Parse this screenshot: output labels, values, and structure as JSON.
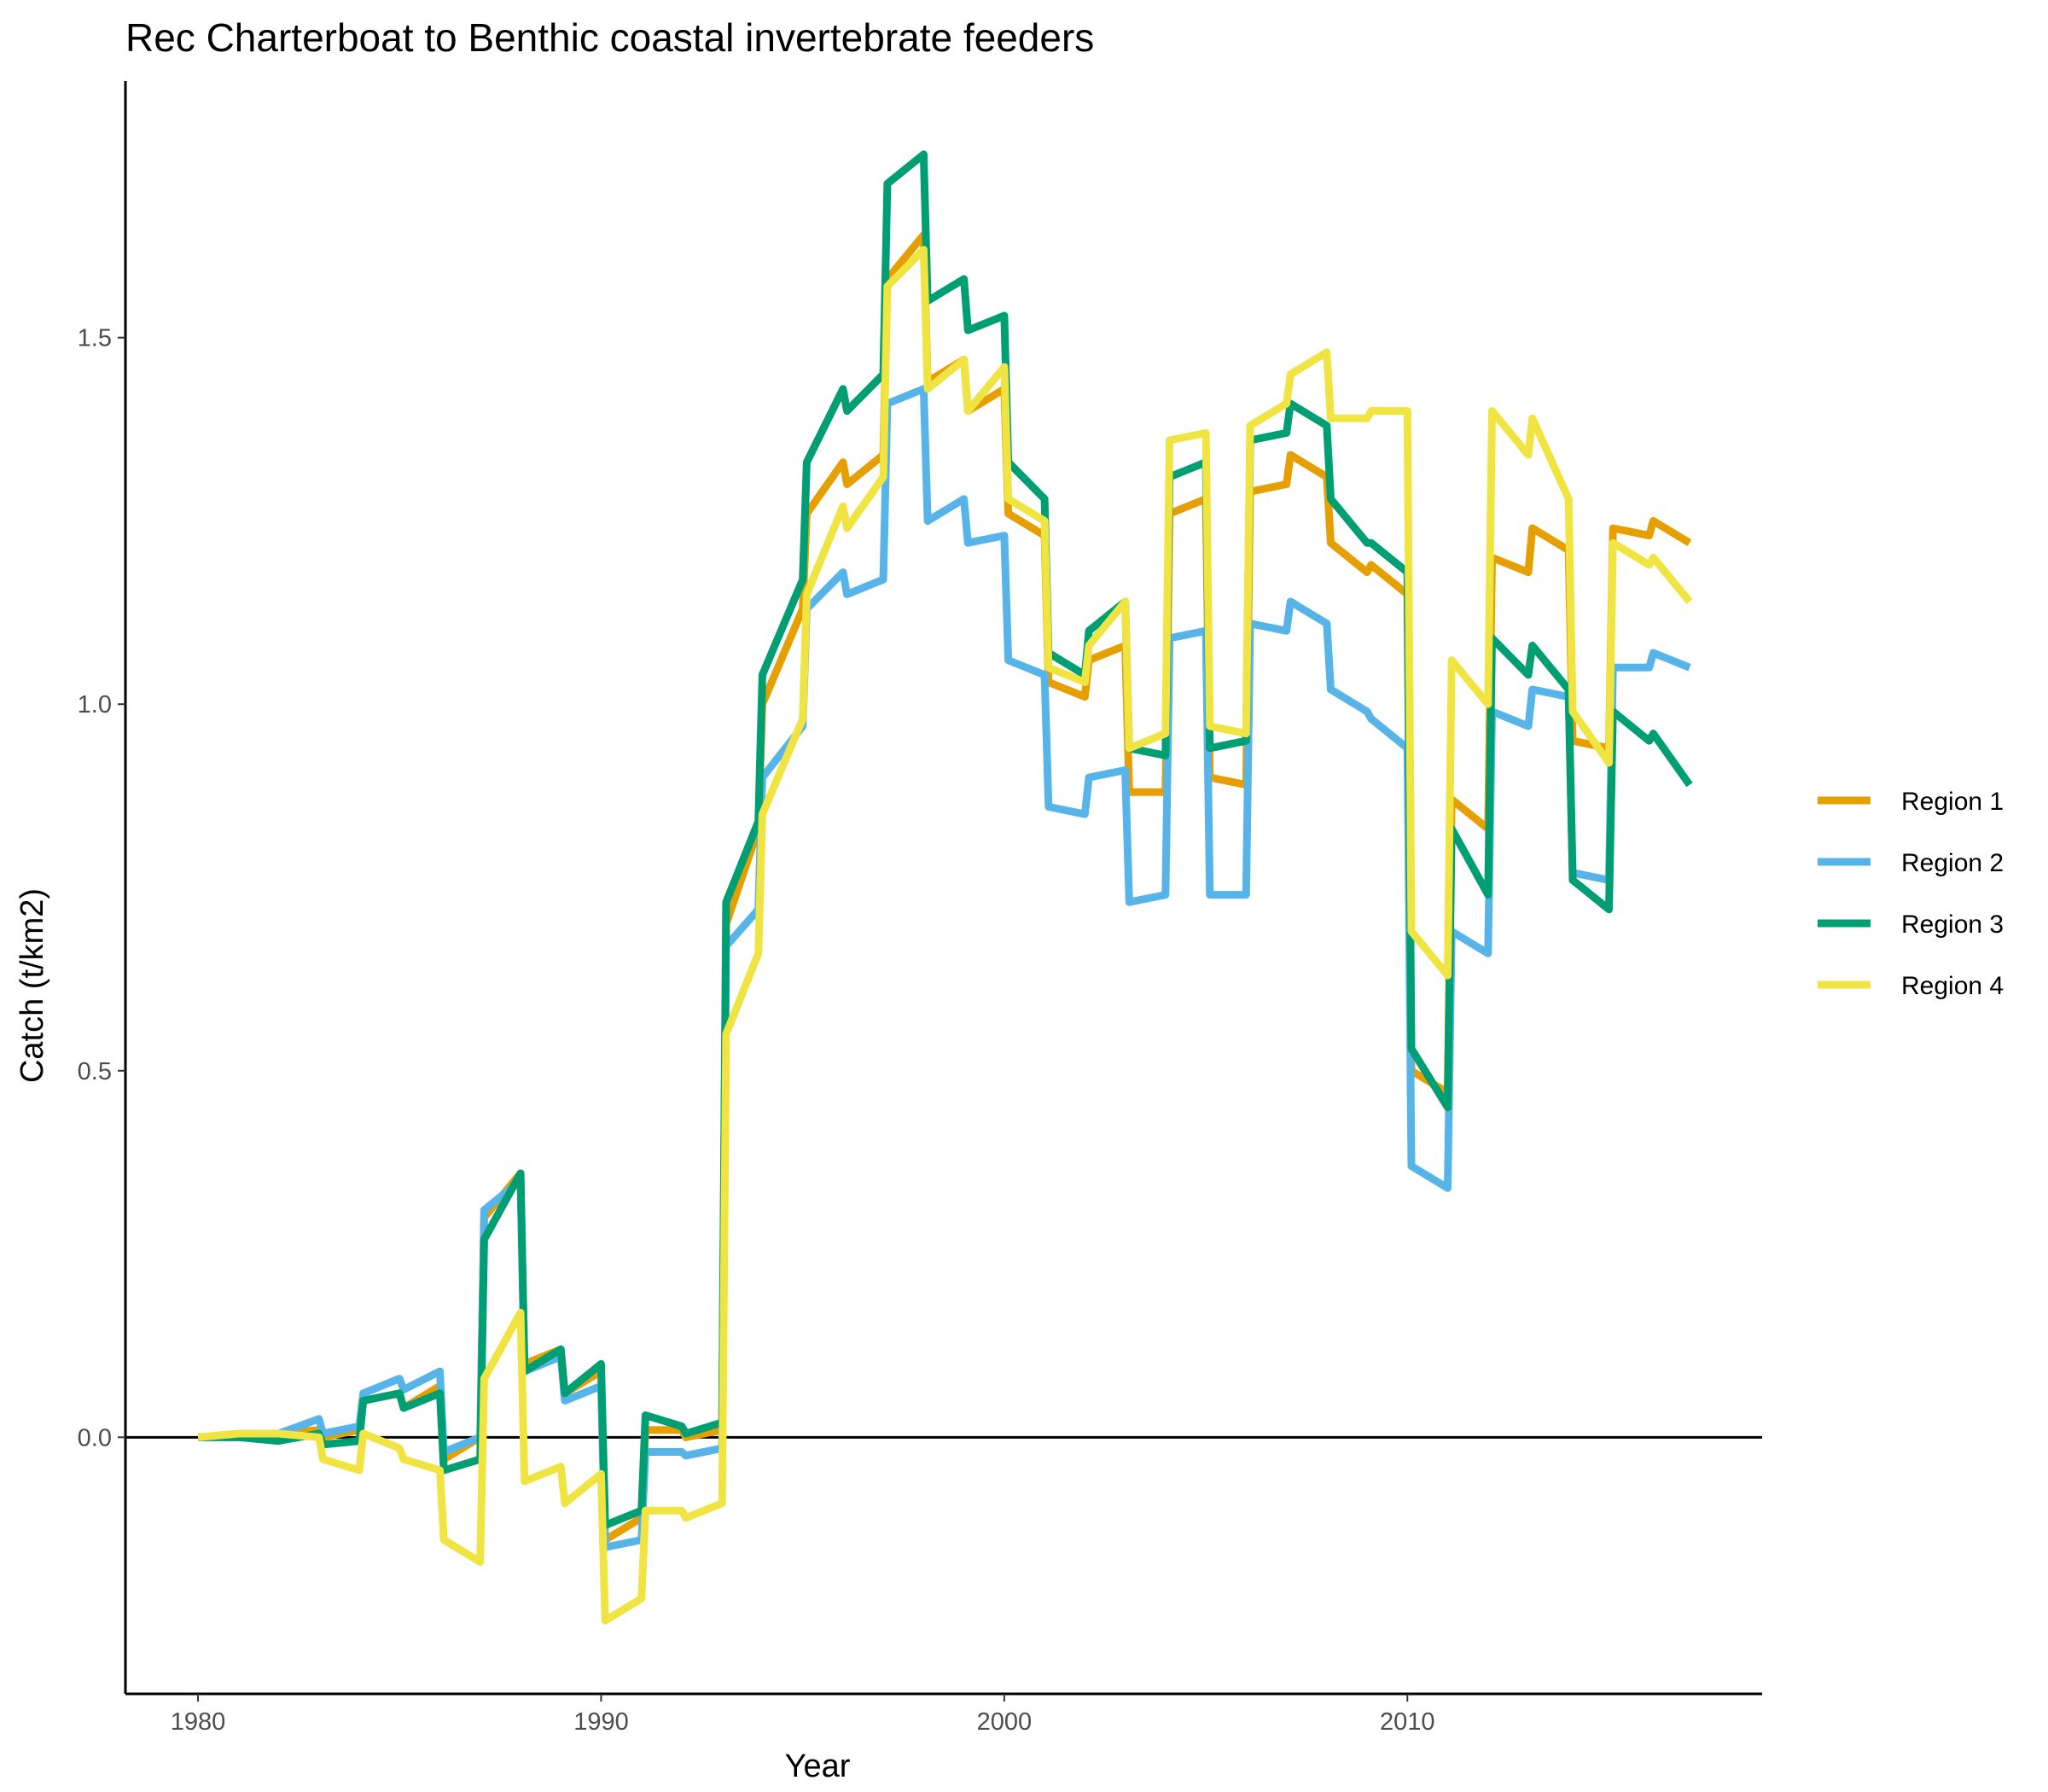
{
  "chart_data": {
    "type": "line",
    "title": "Rec Charterboat to Benthic coastal invertebrate feeders",
    "xlabel": "Year",
    "ylabel": "Catch (t/km2)",
    "xlim": [
      1978.2,
      2018.8
    ],
    "ylim": [
      -0.35,
      1.85
    ],
    "xticks": [
      1980,
      1990,
      2000,
      2010
    ],
    "xtick_labels": [
      "1980",
      "1990",
      "2000",
      "2010"
    ],
    "yticks": [
      0.0,
      0.5,
      1.0,
      1.5
    ],
    "ytick_labels": [
      "0.0",
      "0.5",
      "1.0",
      "1.5"
    ],
    "hline": 0,
    "grid": false,
    "legend_position": "right",
    "series": [
      {
        "name": "Region 1",
        "color": "#E69F00",
        "points": [
          [
            1980,
            0
          ],
          [
            1981,
            0
          ],
          [
            1982,
            0.005
          ],
          [
            1983,
            0.01
          ],
          [
            1983.1,
            0.0
          ],
          [
            1984,
            0.01
          ],
          [
            1984.1,
            0.05
          ],
          [
            1985,
            0.06
          ],
          [
            1985.1,
            0.04
          ],
          [
            1986,
            0.07
          ],
          [
            1986.1,
            -0.03
          ],
          [
            1987,
            0.0
          ],
          [
            1987.1,
            0.3
          ],
          [
            1988,
            0.36
          ],
          [
            1988.1,
            0.1
          ],
          [
            1989,
            0.12
          ],
          [
            1989.1,
            0.06
          ],
          [
            1990,
            0.09
          ],
          [
            1990.1,
            -0.14
          ],
          [
            1991,
            -0.11
          ],
          [
            1991.1,
            0.01
          ],
          [
            1992,
            0.01
          ],
          [
            1992.1,
            0.0
          ],
          [
            1993,
            0.01
          ],
          [
            1993.1,
            0.7
          ],
          [
            1993.9,
            0.83
          ],
          [
            1994,
            1.0
          ],
          [
            1995,
            1.13
          ],
          [
            1995.1,
            1.26
          ],
          [
            1996,
            1.33
          ],
          [
            1996.1,
            1.3
          ],
          [
            1997,
            1.34
          ],
          [
            1997.1,
            1.58
          ],
          [
            1998,
            1.64
          ],
          [
            1998.1,
            1.44
          ],
          [
            1999,
            1.47
          ],
          [
            1999.1,
            1.4
          ],
          [
            2000,
            1.43
          ],
          [
            2000.1,
            1.26
          ],
          [
            2001,
            1.23
          ],
          [
            2001.1,
            1.03
          ],
          [
            2002,
            1.01
          ],
          [
            2002.1,
            1.06
          ],
          [
            2003,
            1.08
          ],
          [
            2003.1,
            0.88
          ],
          [
            2004,
            0.88
          ],
          [
            2004.1,
            1.26
          ],
          [
            2005,
            1.28
          ],
          [
            2005.1,
            0.9
          ],
          [
            2006,
            0.89
          ],
          [
            2006.1,
            1.29
          ],
          [
            2007,
            1.3
          ],
          [
            2007.1,
            1.34
          ],
          [
            2008,
            1.31
          ],
          [
            2008.1,
            1.22
          ],
          [
            2009,
            1.18
          ],
          [
            2009.1,
            1.19
          ],
          [
            2010,
            1.15
          ],
          [
            2010.1,
            0.5
          ],
          [
            2011,
            0.47
          ],
          [
            2011.1,
            0.87
          ],
          [
            2012,
            0.83
          ],
          [
            2012.1,
            1.2
          ],
          [
            2013,
            1.18
          ],
          [
            2013.1,
            1.24
          ],
          [
            2014,
            1.21
          ],
          [
            2014.1,
            0.95
          ],
          [
            2015,
            0.94
          ],
          [
            2015.1,
            1.24
          ],
          [
            2016,
            1.23
          ],
          [
            2016.1,
            1.25
          ],
          [
            2017,
            1.22
          ]
        ]
      },
      {
        "name": "Region 2",
        "color": "#56B4E9",
        "points": [
          [
            1980,
            0
          ],
          [
            1981,
            0
          ],
          [
            1982,
            0.005
          ],
          [
            1983,
            0.025
          ],
          [
            1983.1,
            0.005
          ],
          [
            1984,
            0.015
          ],
          [
            1984.1,
            0.06
          ],
          [
            1985,
            0.08
          ],
          [
            1985.1,
            0.065
          ],
          [
            1986,
            0.09
          ],
          [
            1986.1,
            -0.02
          ],
          [
            1987,
            0.0
          ],
          [
            1987.1,
            0.31
          ],
          [
            1988,
            0.35
          ],
          [
            1988.1,
            0.09
          ],
          [
            1989,
            0.11
          ],
          [
            1989.1,
            0.05
          ],
          [
            1990,
            0.07
          ],
          [
            1990.1,
            -0.15
          ],
          [
            1991,
            -0.14
          ],
          [
            1991.1,
            -0.02
          ],
          [
            1992,
            -0.02
          ],
          [
            1992.1,
            -0.025
          ],
          [
            1993,
            -0.015
          ],
          [
            1993.1,
            0.67
          ],
          [
            1993.9,
            0.72
          ],
          [
            1994,
            0.9
          ],
          [
            1995,
            0.97
          ],
          [
            1995.1,
            1.13
          ],
          [
            1996,
            1.18
          ],
          [
            1996.1,
            1.15
          ],
          [
            1997,
            1.17
          ],
          [
            1997.1,
            1.41
          ],
          [
            1998,
            1.43
          ],
          [
            1998.1,
            1.25
          ],
          [
            1999,
            1.28
          ],
          [
            1999.1,
            1.22
          ],
          [
            2000,
            1.23
          ],
          [
            2000.1,
            1.06
          ],
          [
            2001,
            1.04
          ],
          [
            2001.1,
            0.86
          ],
          [
            2002,
            0.85
          ],
          [
            2002.1,
            0.9
          ],
          [
            2003,
            0.91
          ],
          [
            2003.1,
            0.73
          ],
          [
            2004,
            0.74
          ],
          [
            2004.1,
            1.09
          ],
          [
            2005,
            1.1
          ],
          [
            2005.1,
            0.74
          ],
          [
            2006,
            0.74
          ],
          [
            2006.1,
            1.11
          ],
          [
            2007,
            1.1
          ],
          [
            2007.1,
            1.14
          ],
          [
            2008,
            1.11
          ],
          [
            2008.1,
            1.02
          ],
          [
            2009,
            0.99
          ],
          [
            2009.1,
            0.98
          ],
          [
            2010,
            0.94
          ],
          [
            2010.1,
            0.37
          ],
          [
            2011,
            0.34
          ],
          [
            2011.1,
            0.69
          ],
          [
            2012,
            0.66
          ],
          [
            2012.1,
            0.99
          ],
          [
            2013,
            0.97
          ],
          [
            2013.1,
            1.02
          ],
          [
            2014,
            1.01
          ],
          [
            2014.1,
            0.77
          ],
          [
            2015,
            0.76
          ],
          [
            2015.1,
            1.05
          ],
          [
            2016,
            1.05
          ],
          [
            2016.1,
            1.07
          ],
          [
            2017,
            1.05
          ]
        ]
      },
      {
        "name": "Region 3",
        "color": "#009E73",
        "points": [
          [
            1980,
            0
          ],
          [
            1981,
            0
          ],
          [
            1982,
            -0.005
          ],
          [
            1983,
            0.005
          ],
          [
            1983.1,
            -0.01
          ],
          [
            1984,
            -0.005
          ],
          [
            1984.1,
            0.05
          ],
          [
            1985,
            0.06
          ],
          [
            1985.1,
            0.04
          ],
          [
            1986,
            0.06
          ],
          [
            1986.1,
            -0.045
          ],
          [
            1987,
            -0.03
          ],
          [
            1987.1,
            0.27
          ],
          [
            1988,
            0.36
          ],
          [
            1988.1,
            0.09
          ],
          [
            1989,
            0.12
          ],
          [
            1989.1,
            0.06
          ],
          [
            1990,
            0.1
          ],
          [
            1990.1,
            -0.12
          ],
          [
            1991,
            -0.1
          ],
          [
            1991.1,
            0.03
          ],
          [
            1992,
            0.015
          ],
          [
            1992.1,
            0.005
          ],
          [
            1993,
            0.02
          ],
          [
            1993.1,
            0.73
          ],
          [
            1993.9,
            0.84
          ],
          [
            1994,
            1.04
          ],
          [
            1995,
            1.17
          ],
          [
            1995.1,
            1.33
          ],
          [
            1996,
            1.43
          ],
          [
            1996.1,
            1.4
          ],
          [
            1997,
            1.45
          ],
          [
            1997.1,
            1.71
          ],
          [
            1998,
            1.75
          ],
          [
            1998.1,
            1.55
          ],
          [
            1999,
            1.58
          ],
          [
            1999.1,
            1.51
          ],
          [
            2000,
            1.53
          ],
          [
            2000.1,
            1.33
          ],
          [
            2001,
            1.28
          ],
          [
            2001.1,
            1.07
          ],
          [
            2002,
            1.04
          ],
          [
            2002.1,
            1.1
          ],
          [
            2003,
            1.14
          ],
          [
            2003.1,
            0.94
          ],
          [
            2004,
            0.93
          ],
          [
            2004.1,
            1.31
          ],
          [
            2005,
            1.33
          ],
          [
            2005.1,
            0.94
          ],
          [
            2006,
            0.95
          ],
          [
            2006.1,
            1.36
          ],
          [
            2007,
            1.37
          ],
          [
            2007.1,
            1.41
          ],
          [
            2008,
            1.38
          ],
          [
            2008.1,
            1.28
          ],
          [
            2009,
            1.22
          ],
          [
            2009.1,
            1.22
          ],
          [
            2010,
            1.18
          ],
          [
            2010.1,
            0.53
          ],
          [
            2011,
            0.45
          ],
          [
            2011.1,
            0.83
          ],
          [
            2012,
            0.74
          ],
          [
            2012.1,
            1.09
          ],
          [
            2013,
            1.04
          ],
          [
            2013.1,
            1.08
          ],
          [
            2014,
            1.02
          ],
          [
            2014.1,
            0.76
          ],
          [
            2015,
            0.72
          ],
          [
            2015.1,
            0.99
          ],
          [
            2016,
            0.95
          ],
          [
            2016.1,
            0.96
          ],
          [
            2017,
            0.89
          ]
        ]
      },
      {
        "name": "Region 4",
        "color": "#F0E442",
        "points": [
          [
            1980,
            0
          ],
          [
            1981,
            0.005
          ],
          [
            1982,
            0.005
          ],
          [
            1983,
            0.0
          ],
          [
            1983.1,
            -0.03
          ],
          [
            1984,
            -0.045
          ],
          [
            1984.1,
            0.005
          ],
          [
            1985,
            -0.015
          ],
          [
            1985.1,
            -0.03
          ],
          [
            1986,
            -0.045
          ],
          [
            1986.1,
            -0.14
          ],
          [
            1987,
            -0.17
          ],
          [
            1987.1,
            0.08
          ],
          [
            1988,
            0.17
          ],
          [
            1988.1,
            -0.06
          ],
          [
            1989,
            -0.04
          ],
          [
            1989.1,
            -0.09
          ],
          [
            1990,
            -0.05
          ],
          [
            1990.1,
            -0.25
          ],
          [
            1991,
            -0.22
          ],
          [
            1991.1,
            -0.1
          ],
          [
            1992,
            -0.1
          ],
          [
            1992.1,
            -0.11
          ],
          [
            1993,
            -0.09
          ],
          [
            1993.1,
            0.55
          ],
          [
            1993.9,
            0.66
          ],
          [
            1994,
            0.85
          ],
          [
            1995,
            0.98
          ],
          [
            1995.1,
            1.15
          ],
          [
            1996,
            1.27
          ],
          [
            1996.1,
            1.24
          ],
          [
            1997,
            1.31
          ],
          [
            1997.1,
            1.57
          ],
          [
            1998,
            1.62
          ],
          [
            1998.1,
            1.43
          ],
          [
            1999,
            1.47
          ],
          [
            1999.1,
            1.4
          ],
          [
            2000,
            1.46
          ],
          [
            2000.1,
            1.28
          ],
          [
            2001,
            1.25
          ],
          [
            2001.1,
            1.05
          ],
          [
            2002,
            1.03
          ],
          [
            2002.1,
            1.08
          ],
          [
            2003,
            1.14
          ],
          [
            2003.1,
            0.94
          ],
          [
            2004,
            0.96
          ],
          [
            2004.1,
            1.36
          ],
          [
            2005,
            1.37
          ],
          [
            2005.1,
            0.97
          ],
          [
            2006,
            0.96
          ],
          [
            2006.1,
            1.38
          ],
          [
            2007,
            1.41
          ],
          [
            2007.1,
            1.45
          ],
          [
            2008,
            1.48
          ],
          [
            2008.1,
            1.39
          ],
          [
            2009,
            1.39
          ],
          [
            2009.1,
            1.4
          ],
          [
            2010,
            1.4
          ],
          [
            2010.1,
            0.69
          ],
          [
            2011,
            0.63
          ],
          [
            2011.1,
            1.06
          ],
          [
            2012,
            1.0
          ],
          [
            2012.1,
            1.4
          ],
          [
            2013,
            1.34
          ],
          [
            2013.1,
            1.39
          ],
          [
            2014,
            1.28
          ],
          [
            2014.1,
            0.99
          ],
          [
            2015,
            0.92
          ],
          [
            2015.1,
            1.22
          ],
          [
            2016,
            1.19
          ],
          [
            2016.1,
            1.2
          ],
          [
            2017,
            1.14
          ]
        ]
      }
    ]
  }
}
